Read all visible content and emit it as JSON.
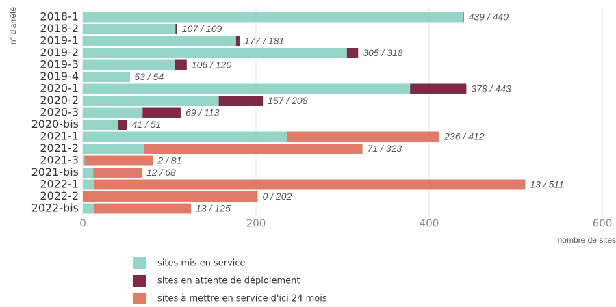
{
  "chart_data": {
    "type": "stacked_barh",
    "y_axis_label": "n° d'arrêté",
    "x_axis_label": "nombre de sites",
    "categories": [
      "2018-1",
      "2018-2",
      "2019-1",
      "2019-2",
      "2019-3",
      "2019-4",
      "2020-1",
      "2020-2",
      "2020-3",
      "2020-bis",
      "2021-1",
      "2021-2",
      "2021-3",
      "2021-bis",
      "2022-1",
      "2022-2",
      "2022-bis"
    ],
    "series": [
      {
        "name": "sites mis en service",
        "color": "#94d5c8",
        "values": [
          439,
          107,
          177,
          305,
          106,
          53,
          378,
          157,
          69,
          41,
          236,
          71,
          2,
          12,
          13,
          0,
          13
        ]
      },
      {
        "name": "sites en attente de déploiement",
        "color": "#7d2a47",
        "values": [
          1,
          2,
          4,
          13,
          14,
          1,
          65,
          51,
          44,
          10,
          0,
          0,
          0,
          0,
          0,
          0,
          0
        ]
      },
      {
        "name": "sites à mettre en service d'ici 24 mois",
        "color": "#e07b6a",
        "values": [
          0,
          0,
          0,
          0,
          0,
          0,
          0,
          0,
          0,
          0,
          176,
          252,
          79,
          56,
          498,
          202,
          112
        ]
      }
    ],
    "bar_labels": [
      "439 / 440",
      "107 / 109",
      "177 / 181",
      "305 / 318",
      "106 / 120",
      "53 /  54",
      "378 / 443",
      "157 / 208",
      "69 / 113",
      "41 /  51",
      "236 / 412",
      "71 / 323",
      "2 /  81",
      "12 /  68",
      "13 / 511",
      "0 / 202",
      "13 / 125"
    ],
    "xlim": [
      0,
      600
    ],
    "xticks": [
      0,
      200,
      400,
      600
    ],
    "grid": true
  }
}
